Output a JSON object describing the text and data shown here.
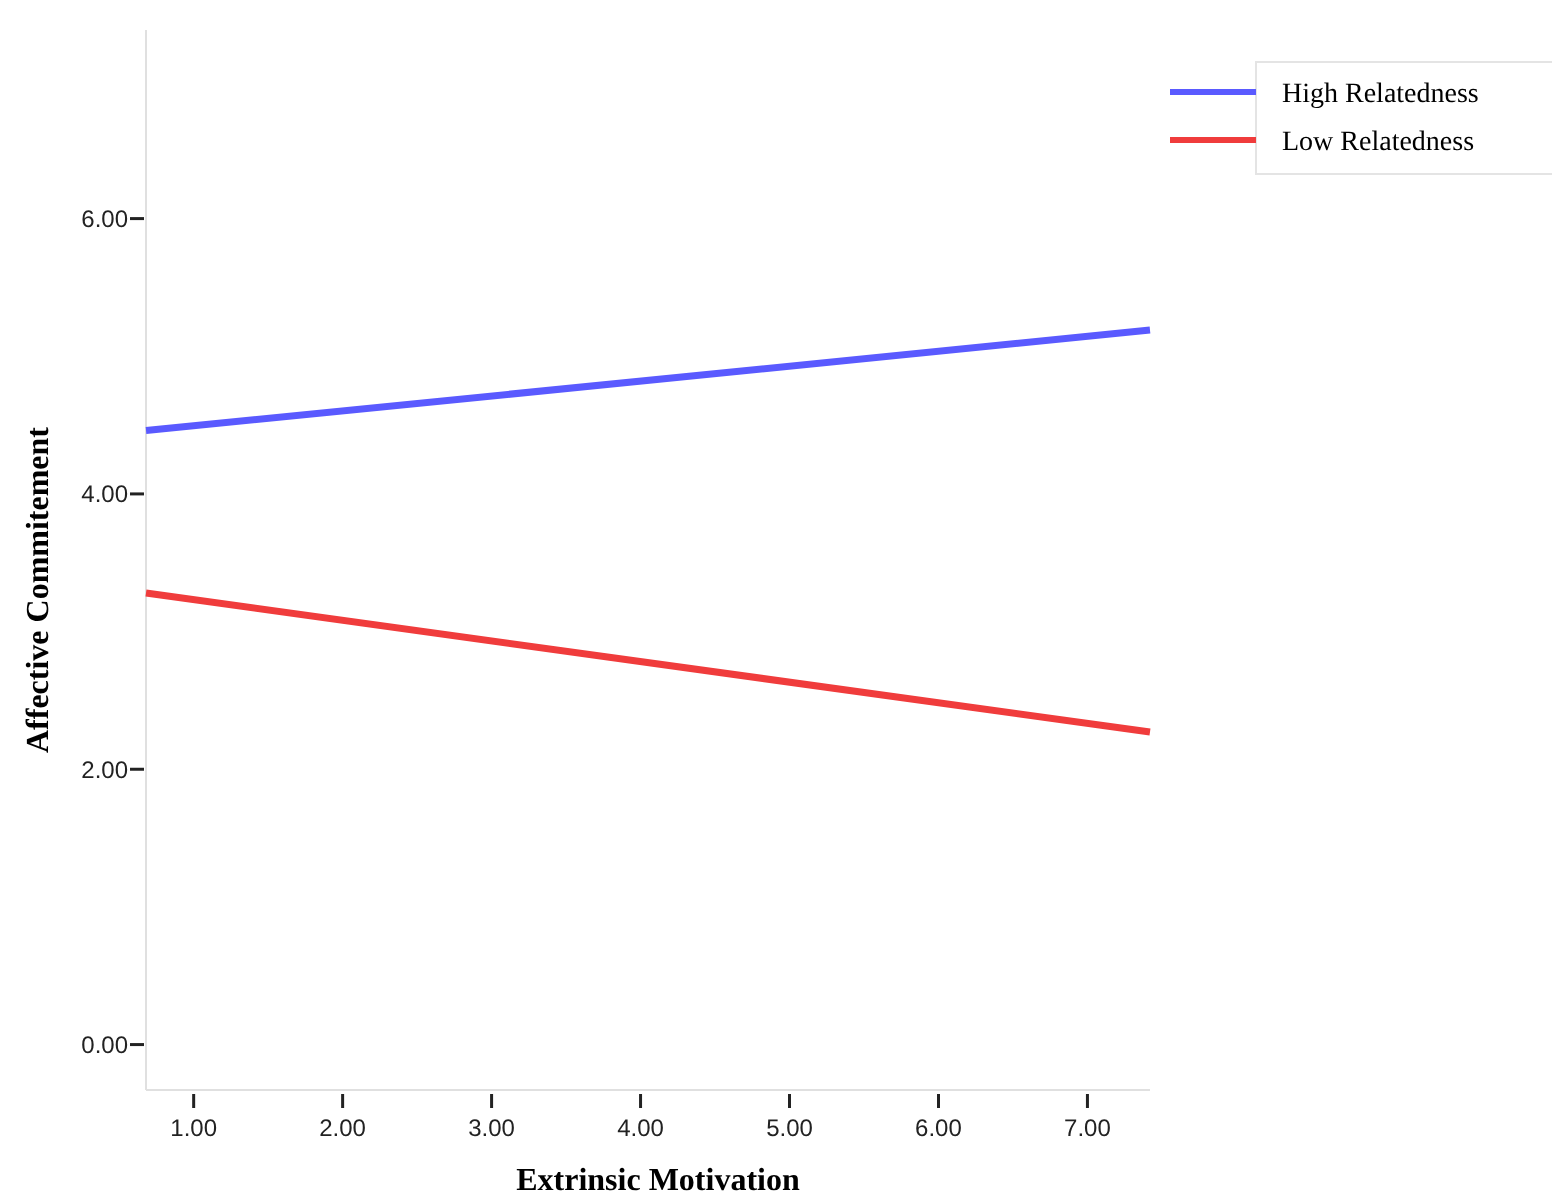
{
  "chart_data": {
    "type": "line",
    "xlabel": "Extrinsic Motivation",
    "ylabel": "Affective Commitement",
    "xlim": [
      0.68,
      7.42
    ],
    "ylim": [
      -0.33,
      7.37
    ],
    "xticks": [
      {
        "value": 1,
        "label": "1.00"
      },
      {
        "value": 2,
        "label": "2.00"
      },
      {
        "value": 3,
        "label": "3.00"
      },
      {
        "value": 4,
        "label": "4.00"
      },
      {
        "value": 5,
        "label": "5.00"
      },
      {
        "value": 6,
        "label": "6.00"
      },
      {
        "value": 7,
        "label": "7.00"
      }
    ],
    "yticks": [
      {
        "value": 0,
        "label": "0.00"
      },
      {
        "value": 2,
        "label": "2.00"
      },
      {
        "value": 4,
        "label": "4.00"
      },
      {
        "value": 6,
        "label": "6.00"
      }
    ],
    "x": [
      0.68,
      7.42
    ],
    "series": [
      {
        "name": "High Relatedness",
        "color": "#5a5aff",
        "values": [
          4.46,
          5.19
        ]
      },
      {
        "name": "Low Relatedness",
        "color": "#f03c3c",
        "values": [
          3.28,
          2.27
        ]
      }
    ],
    "legend": "top right",
    "grid": false,
    "marker": "none",
    "line_style": "solid"
  }
}
